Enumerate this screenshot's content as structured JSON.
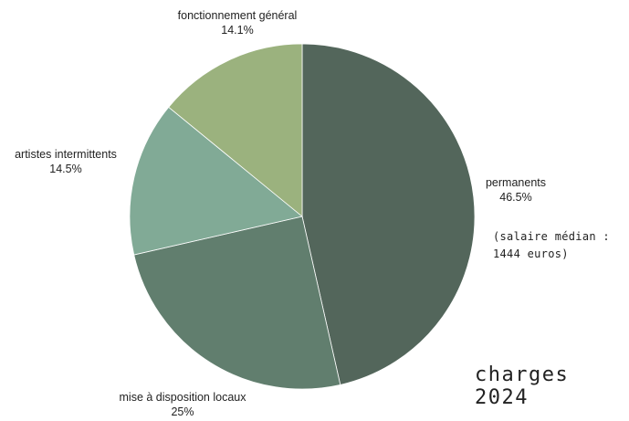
{
  "chart_data": {
    "type": "pie",
    "title": "charges 2024",
    "start_angle_deg": 0,
    "direction": "clockwise",
    "slices": [
      {
        "label": "permanents",
        "value_label": "46.5%",
        "value": 46.5,
        "color": "#53665B"
      },
      {
        "label": "mise à disposition locaux",
        "value_label": "25%",
        "value": 25,
        "color": "#617E6E"
      },
      {
        "label": "artistes intermittents",
        "value_label": "14.5%",
        "value": 14.5,
        "color": "#81AA96"
      },
      {
        "label": "fonctionnement général",
        "value_label": "14.1%",
        "value": 14.1,
        "color": "#9BB27E"
      }
    ],
    "annotation": [
      "(salaire médian :",
      "1444 euros)"
    ]
  }
}
